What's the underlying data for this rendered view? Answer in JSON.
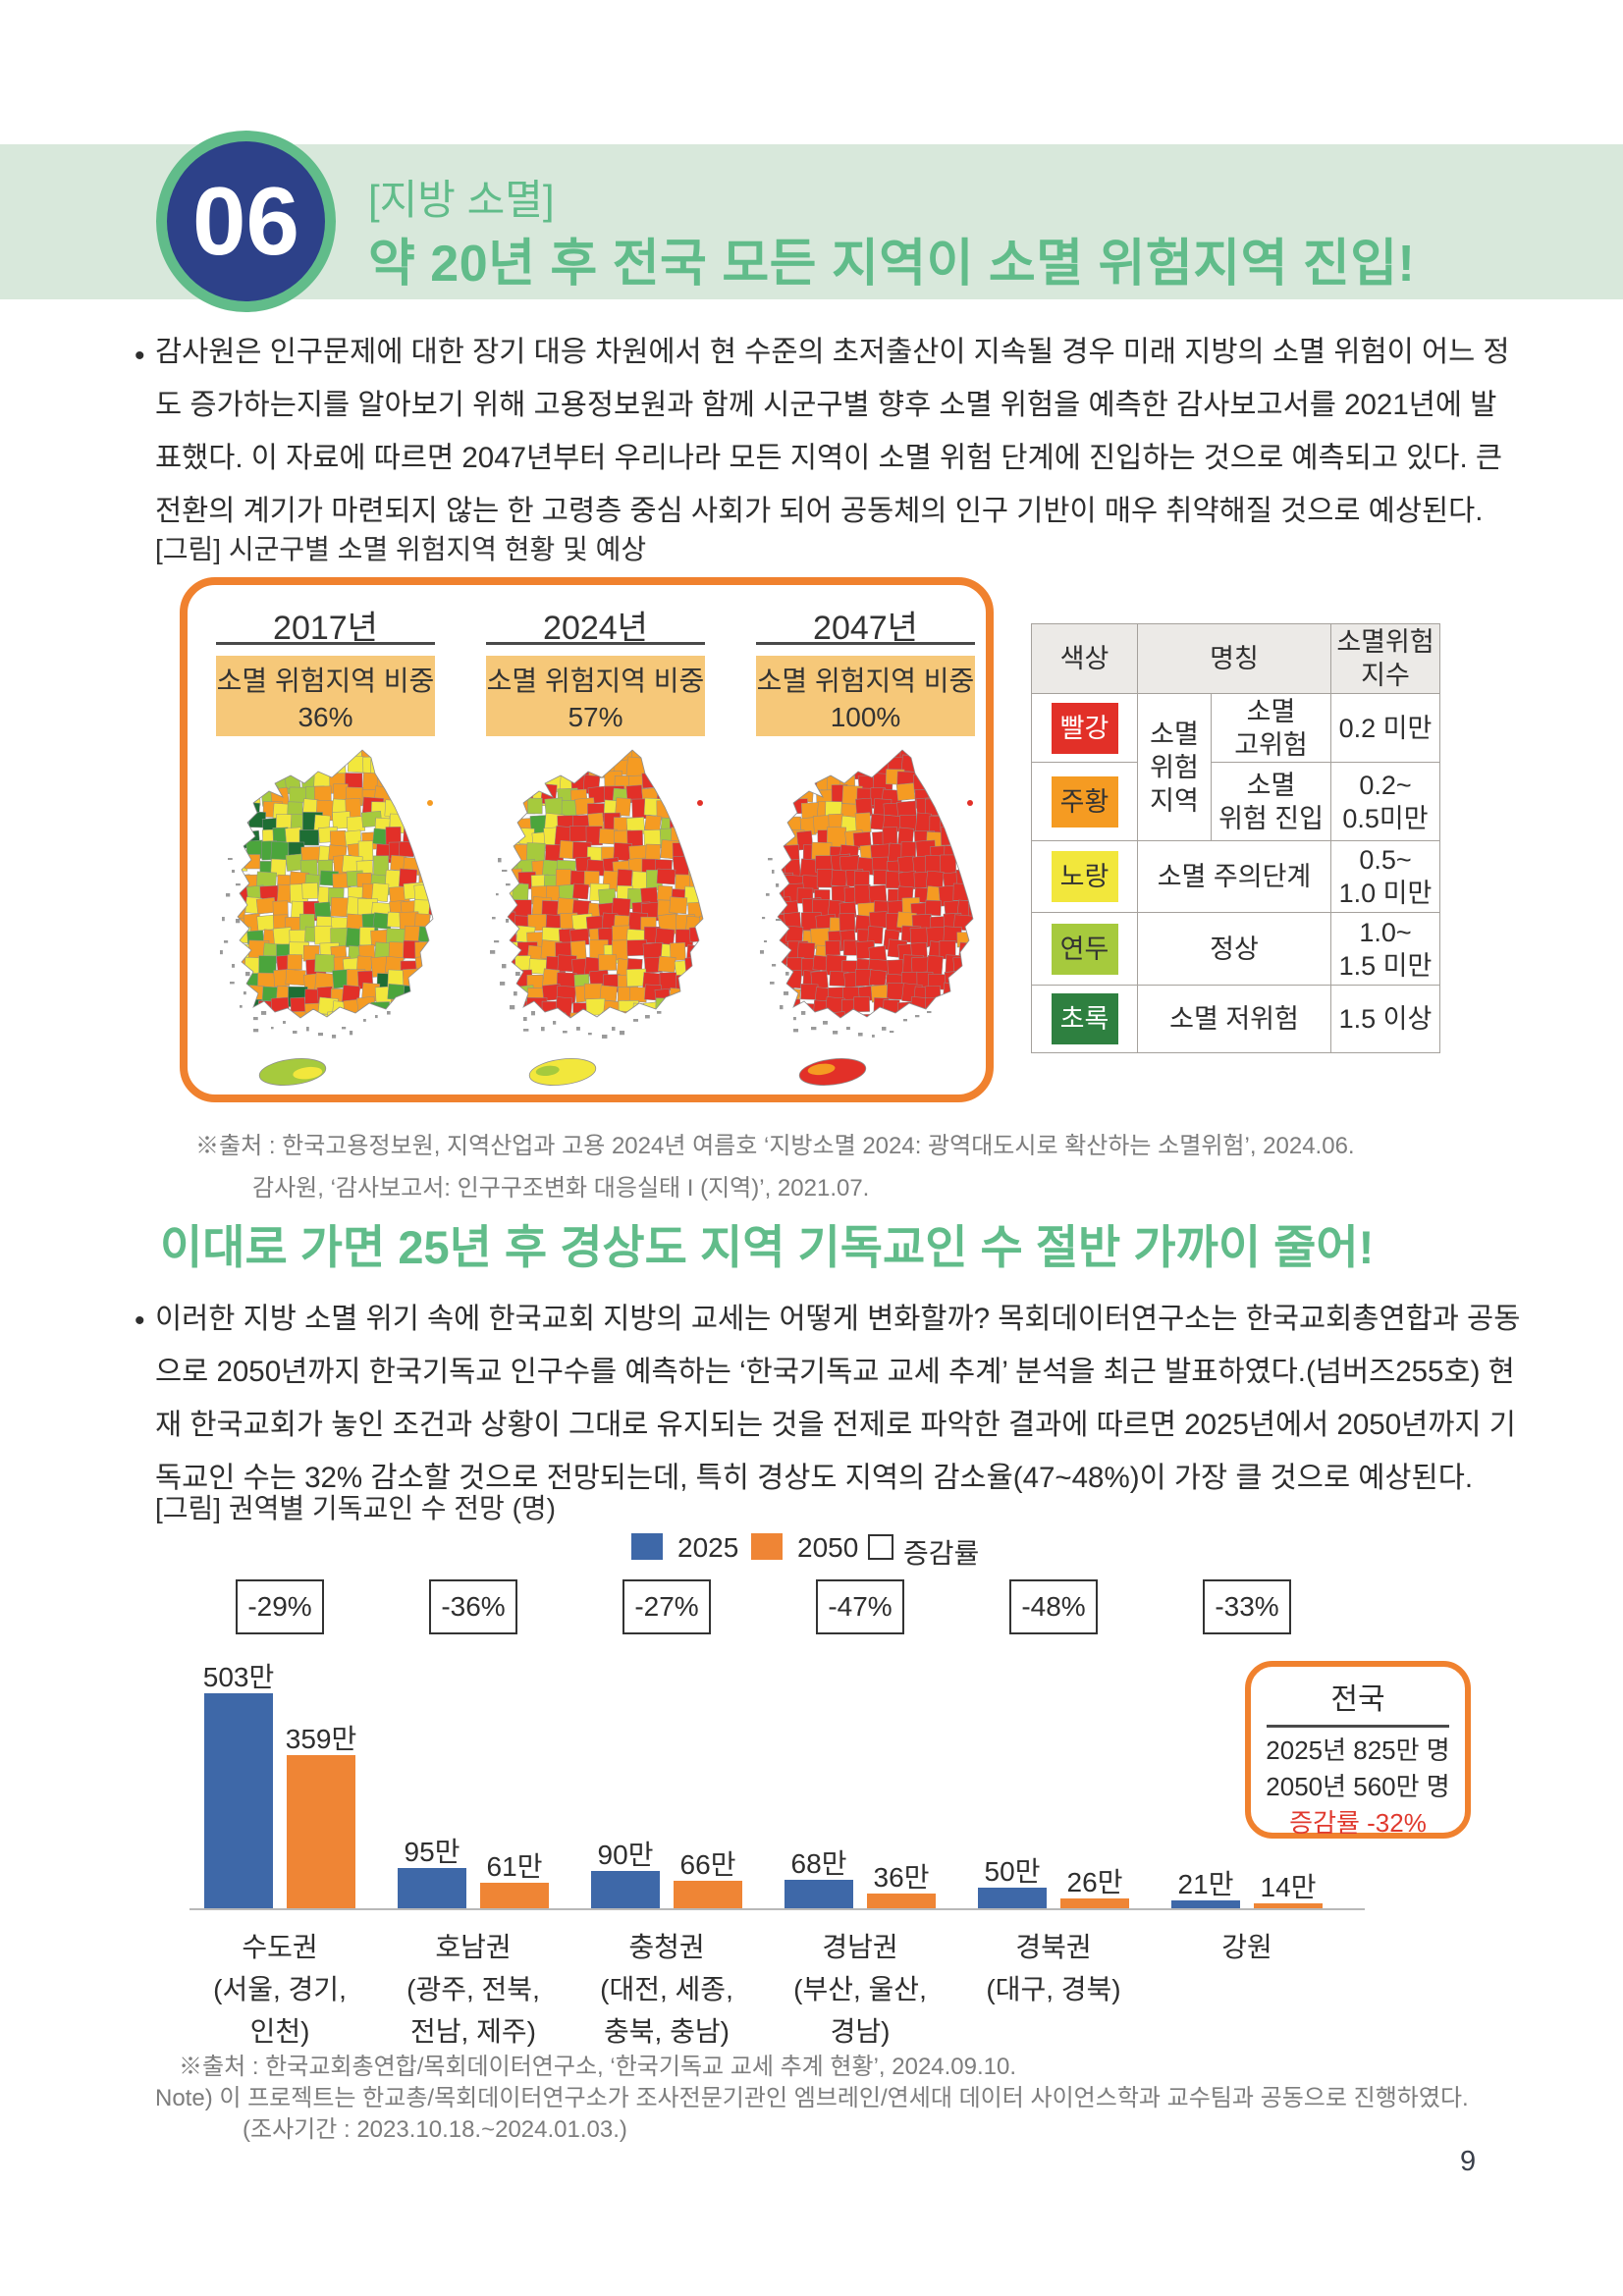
{
  "page_number": "9",
  "header": {
    "number": "06",
    "kicker": "[지방 소멸]",
    "title": "약 20년 후 전국 모든 지역이 소멸 위험지역 진입!"
  },
  "intro": {
    "lines": [
      "감사원은 인구문제에 대한 장기 대응 차원에서 현 수준의 초저출산이 지속될 경우 미래 지방의 소멸 위험이 어느 정",
      "도 증가하는지를 알아보기 위해 고용정보원과 함께 시군구별 향후 소멸 위험을 예측한 감사보고서를 2021년에 발",
      "표했다. 이 자료에 따르면 2047년부터 우리나라 모든 지역이 소멸 위험 단계에 진입하는 것으로 예측되고 있다. 큰",
      "전환의 계기가 마련되지 않는 한 고령층 중심 사회가 되어 공동체의 인구 기반이 매우 취약해질 것으로 예상된다."
    ]
  },
  "figure1": {
    "caption": "[그림] 시군구별 소멸 위험지역 현황 및 예상",
    "columns": [
      {
        "year": "2017년",
        "label": "소멸 위험지역 비중\n36%"
      },
      {
        "year": "2024년",
        "label": "소멸 위험지역 비중\n57%"
      },
      {
        "year": "2047년",
        "label": "소멸 위험지역 비중\n100%"
      }
    ],
    "legend_table": {
      "headers": [
        "색상",
        "명칭",
        "소멸위험\n지수"
      ],
      "group_label": "소멸\n위험\n지역",
      "rows": [
        {
          "color_name": "빨강",
          "hex": "#e23028",
          "name": "소멸\n고위험",
          "index": "0.2 미만"
        },
        {
          "color_name": "주황",
          "hex": "#f59b22",
          "name": "소멸\n위험 진입",
          "index": "0.2~\n0.5미만"
        },
        {
          "color_name": "노랑",
          "hex": "#f2e73c",
          "name": "소멸 주의단계",
          "index": "0.5~\n1.0 미만"
        },
        {
          "color_name": "연두",
          "hex": "#a6ca3d",
          "name": "정상",
          "index": "1.0~\n1.5 미만"
        },
        {
          "color_name": "초록",
          "hex": "#2e8040",
          "name": "소멸 저위험",
          "index": "1.5 이상"
        }
      ]
    },
    "map_palette": {
      "red": "#e23028",
      "orange": "#f59b22",
      "yellow": "#f2e73c",
      "yellowgreen": "#a6ca3d",
      "green": "#4ba53c",
      "darkgreen": "#1e6e34"
    },
    "source_lines": [
      "※출처 : 한국고용정보원, 지역산업과 고용 2024년 여름호 ‘지방소멸 2024: 광역대도시로 확산하는 소멸위험’, 2024.06.",
      "감사원, ‘감사보고서: 인구구조변화 대응실태 I (지역)’, 2021.07."
    ]
  },
  "section2": {
    "title": "이대로 가면 25년 후 경상도 지역 기독교인 수 절반 가까이 줄어!",
    "lines": [
      "이러한 지방 소멸 위기 속에 한국교회 지방의 교세는 어떻게 변화할까? 목회데이터연구소는 한국교회총연합과 공동",
      "으로 2050년까지 한국기독교 인구수를 예측하는 ‘한국기독교 교세 추계’ 분석을 최근 발표하였다.(넘버즈255호) 현",
      "재 한국교회가 놓인 조건과 상황이 그대로 유지되는 것을 전제로 파악한 결과에 따르면 2025년에서 2050년까지 기",
      "독교인 수는 32% 감소할 것으로 전망되는데, 특히 경상도 지역의 감소율(47~48%)이 가장 클 것으로 예상된다."
    ]
  },
  "chart_data": {
    "type": "bar",
    "title": "[그림] 권역별 기독교인 수 전망 (명)",
    "unit": "만 (10k persons)",
    "categories": [
      "수도권\n(서울, 경기,\n인천)",
      "호남권\n(광주, 전북,\n전남, 제주)",
      "충청권\n(대전, 세종,\n충북, 충남)",
      "경남권\n(부산, 울산,\n경남)",
      "경북권\n(대구, 경북)",
      "강원"
    ],
    "series": [
      {
        "name": "2025",
        "color": "#3e68a8",
        "values": [
          503,
          95,
          90,
          68,
          50,
          21
        ],
        "labels": [
          "503만",
          "95만",
          "90만",
          "68만",
          "50만",
          "21만"
        ]
      },
      {
        "name": "2050",
        "color": "#ef8535",
        "values": [
          359,
          61,
          66,
          36,
          26,
          14
        ],
        "labels": [
          "359만",
          "61만",
          "66만",
          "36만",
          "26만",
          "14만"
        ]
      }
    ],
    "change_labels": [
      "-29%",
      "-36%",
      "-27%",
      "-47%",
      "-48%",
      "-33%"
    ],
    "legend": [
      "2025",
      "2050",
      "증감률"
    ],
    "national_box": {
      "title": "전국",
      "line_2025": "2025년 825만 명",
      "line_2050": "2050년 560만 명",
      "change": "증감률 -32%"
    }
  },
  "footer": {
    "source": "※출처 : 한국교회총연합/목회데이터연구소, ‘한국기독교 교세 추계 현황’, 2024.09.10.",
    "note": "Note) 이 프로젝트는 한교총/목회데이터연구소가 조사전문기관인 엠브레인/연세대 데이터 사이언스학과 교수팀과 공동으로 진행하였다.",
    "note2": "(조사기간 : 2023.10.18.~2024.01.03.)"
  }
}
